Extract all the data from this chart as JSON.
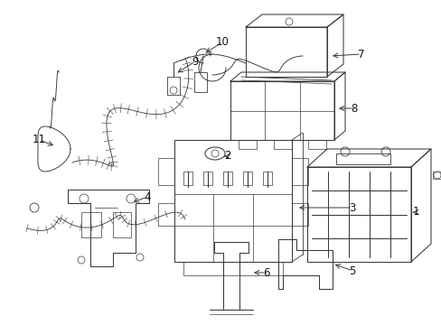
{
  "background_color": "#ffffff",
  "line_color": "#3a3a3a",
  "fig_width": 4.89,
  "fig_height": 3.6,
  "dpi": 100,
  "label_fontsize": 8.5,
  "lw": 0.75
}
